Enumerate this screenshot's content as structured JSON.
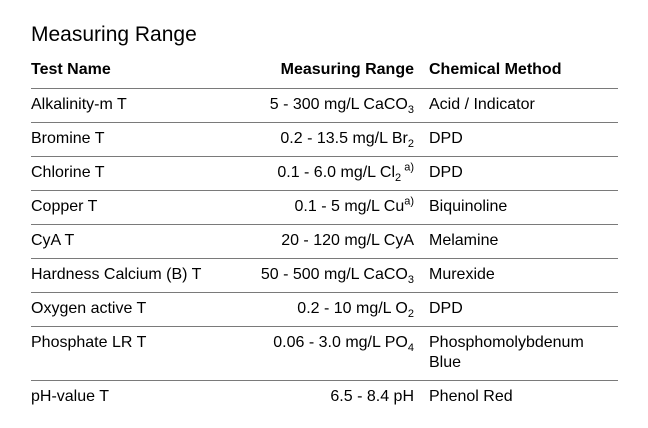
{
  "page": {
    "background_color": "#ffffff",
    "text_color": "#000000",
    "rule_color": "#7a7a7a",
    "title": "Measuring Range"
  },
  "table": {
    "headers": {
      "test_name": "Test Name",
      "measuring_range": "Measuring Range",
      "chemical_method": "Chemical Method"
    },
    "rows": [
      {
        "test_name": "Alkalinity-m T",
        "range_main": "5 - 300 mg/L CaCO",
        "range_sub": "3",
        "range_sup": "",
        "method": "Acid / Indicator"
      },
      {
        "test_name": "Bromine T",
        "range_main": "0.2 - 13.5 mg/L Br",
        "range_sub": "2",
        "range_sup": "",
        "method": "DPD"
      },
      {
        "test_name": "Chlorine T",
        "range_main": "0.1 - 6.0 mg/L Cl",
        "range_sub": "2",
        "range_sup": " a)",
        "method": "DPD"
      },
      {
        "test_name": "Copper T",
        "range_main": "0.1 - 5 mg/L Cu",
        "range_sub": "",
        "range_sup": "a)",
        "method": "Biquinoline"
      },
      {
        "test_name": "CyA T",
        "range_main": "20 - 120 mg/L CyA",
        "range_sub": "",
        "range_sup": "",
        "method": "Melamine"
      },
      {
        "test_name": "Hardness Calcium (B) T",
        "range_main": "50 - 500 mg/L CaCO",
        "range_sub": "3",
        "range_sup": "",
        "method": "Murexide"
      },
      {
        "test_name": "Oxygen active T",
        "range_main": "0.2 - 10 mg/L O",
        "range_sub": "2",
        "range_sup": "",
        "method": "DPD"
      },
      {
        "test_name": "Phosphate LR T",
        "range_main": "0.06 - 3.0 mg/L PO",
        "range_sub": "4",
        "range_sup": "",
        "method": "Phosphomolybdenum Blue"
      },
      {
        "test_name": "pH-value T",
        "range_main": "6.5 - 8.4 pH",
        "range_sub": "",
        "range_sup": "",
        "method": "Phenol Red"
      }
    ]
  }
}
